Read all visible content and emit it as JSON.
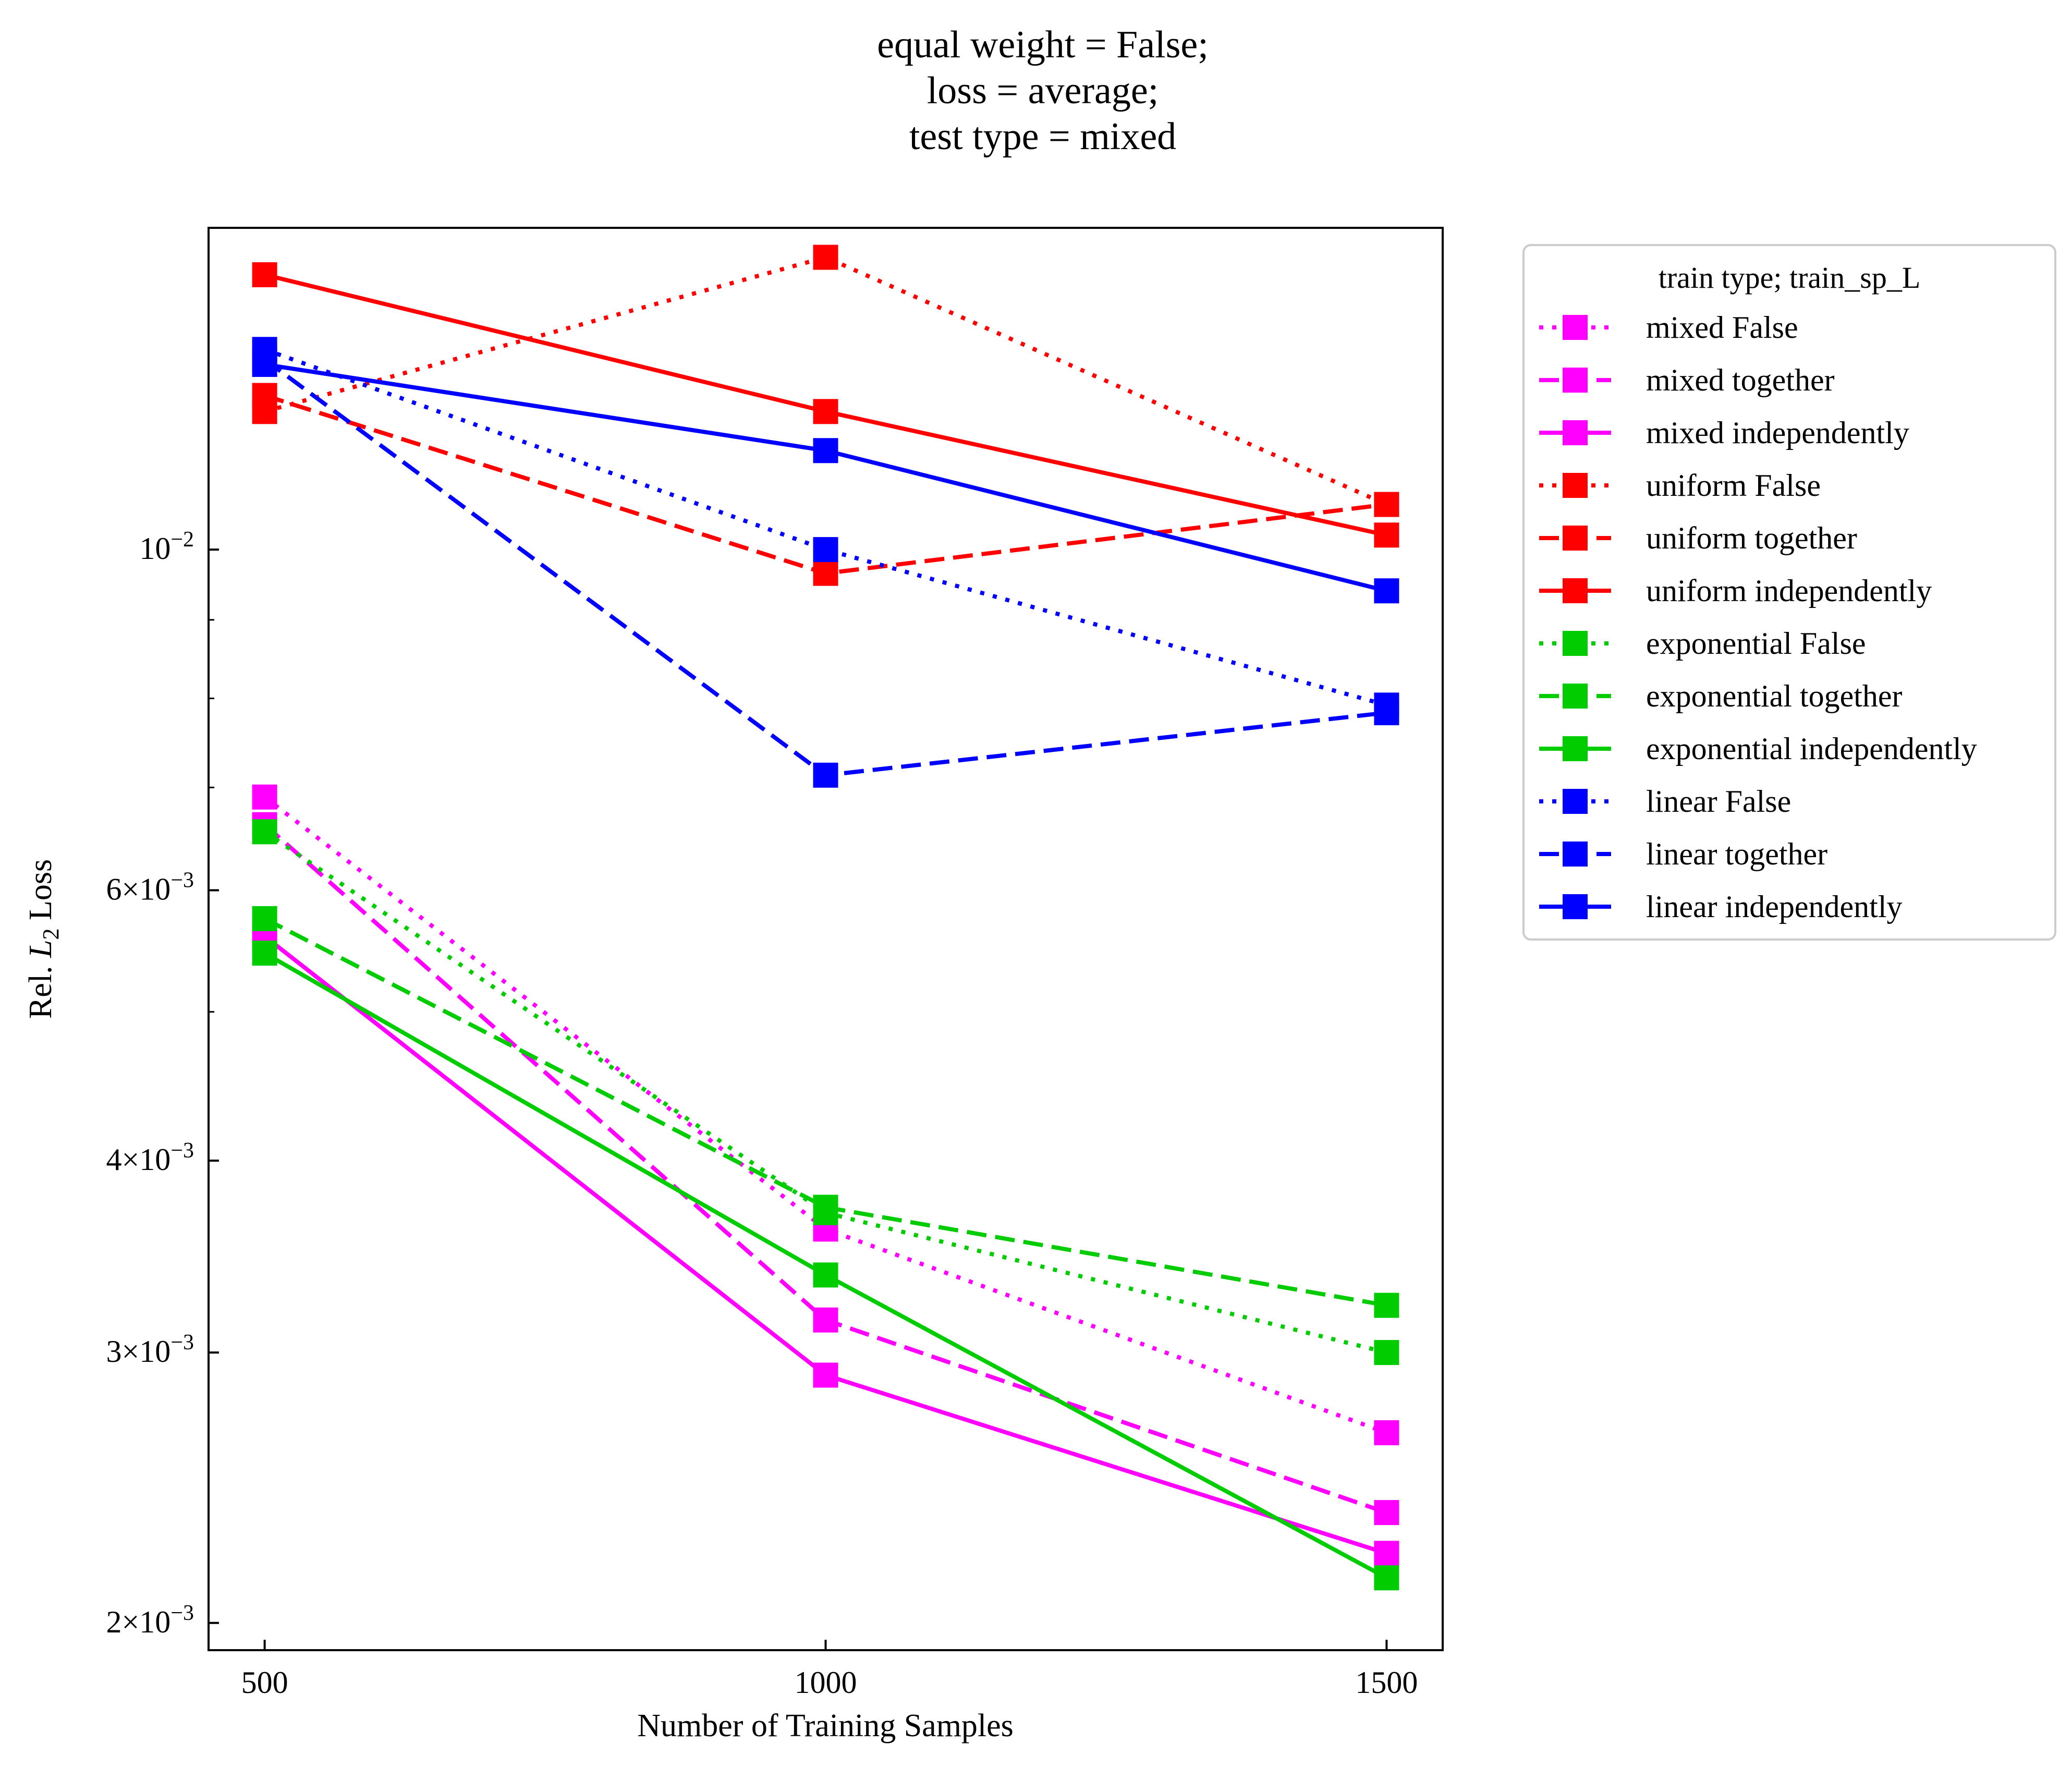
{
  "chart_data": {
    "type": "line",
    "title_lines": [
      "equal weight = False;",
      "loss = average;",
      "test type = mixed"
    ],
    "xlabel": "Number of Training Samples",
    "ylabel_prefix": "Rel. ",
    "ylabel_var": "L",
    "ylabel_sub": "2",
    "ylabel_suffix": " Loss",
    "x": [
      500,
      1000,
      1500
    ],
    "xticks": [
      "500",
      "1000",
      "1500"
    ],
    "xlim": [
      450,
      1550
    ],
    "yscale": "log",
    "ylim": [
      0.00192,
      0.0162
    ],
    "yticks": [
      {
        "value": 0.002,
        "mant": "2",
        "exp": "−3"
      },
      {
        "value": 0.003,
        "mant": "3",
        "exp": "−3"
      },
      {
        "value": 0.004,
        "mant": "4",
        "exp": "−3"
      },
      {
        "value": 0.006,
        "mant": "6",
        "exp": "−3"
      },
      {
        "value": 0.01,
        "mant": "",
        "exp": "−2"
      }
    ],
    "grid": false,
    "legend": {
      "title": "train type; train_sp_L",
      "placement": "outside upper right"
    },
    "series": [
      {
        "name": "mixed False",
        "color": "#ff00ff",
        "style": "dotted",
        "values": [
          0.0069,
          0.00361,
          0.00266
        ]
      },
      {
        "name": "mixed together",
        "color": "#ff00ff",
        "style": "dashed",
        "values": [
          0.00662,
          0.00315,
          0.00236
        ]
      },
      {
        "name": "mixed independently",
        "color": "#ff00ff",
        "style": "solid",
        "values": [
          0.0056,
          0.0029,
          0.00222
        ]
      },
      {
        "name": "uniform False",
        "color": "#ff0000",
        "style": "dotted",
        "values": [
          0.0123,
          0.0155,
          0.0107
        ]
      },
      {
        "name": "uniform together",
        "color": "#ff0000",
        "style": "dashed",
        "values": [
          0.0126,
          0.00965,
          0.0107
        ]
      },
      {
        "name": "uniform independently",
        "color": "#ff0000",
        "style": "solid",
        "values": [
          0.0151,
          0.0123,
          0.01022
        ]
      },
      {
        "name": "exponential False",
        "color": "#00cc00",
        "style": "dotted",
        "values": [
          0.00655,
          0.0037,
          0.003
        ]
      },
      {
        "name": "exponential together",
        "color": "#00cc00",
        "style": "dashed",
        "values": [
          0.00575,
          0.00373,
          0.00322
        ]
      },
      {
        "name": "exponential independently",
        "color": "#00cc00",
        "style": "solid",
        "values": [
          0.00546,
          0.00337,
          0.00214
        ]
      },
      {
        "name": "linear False",
        "color": "#0000ff",
        "style": "dotted",
        "values": [
          0.0135,
          0.01,
          0.00792
        ]
      },
      {
        "name": "linear together",
        "color": "#0000ff",
        "style": "dashed",
        "values": [
          0.0133,
          0.00713,
          0.00783
        ]
      },
      {
        "name": "linear independently",
        "color": "#0000ff",
        "style": "solid",
        "values": [
          0.0132,
          0.0116,
          0.0094
        ]
      }
    ]
  }
}
